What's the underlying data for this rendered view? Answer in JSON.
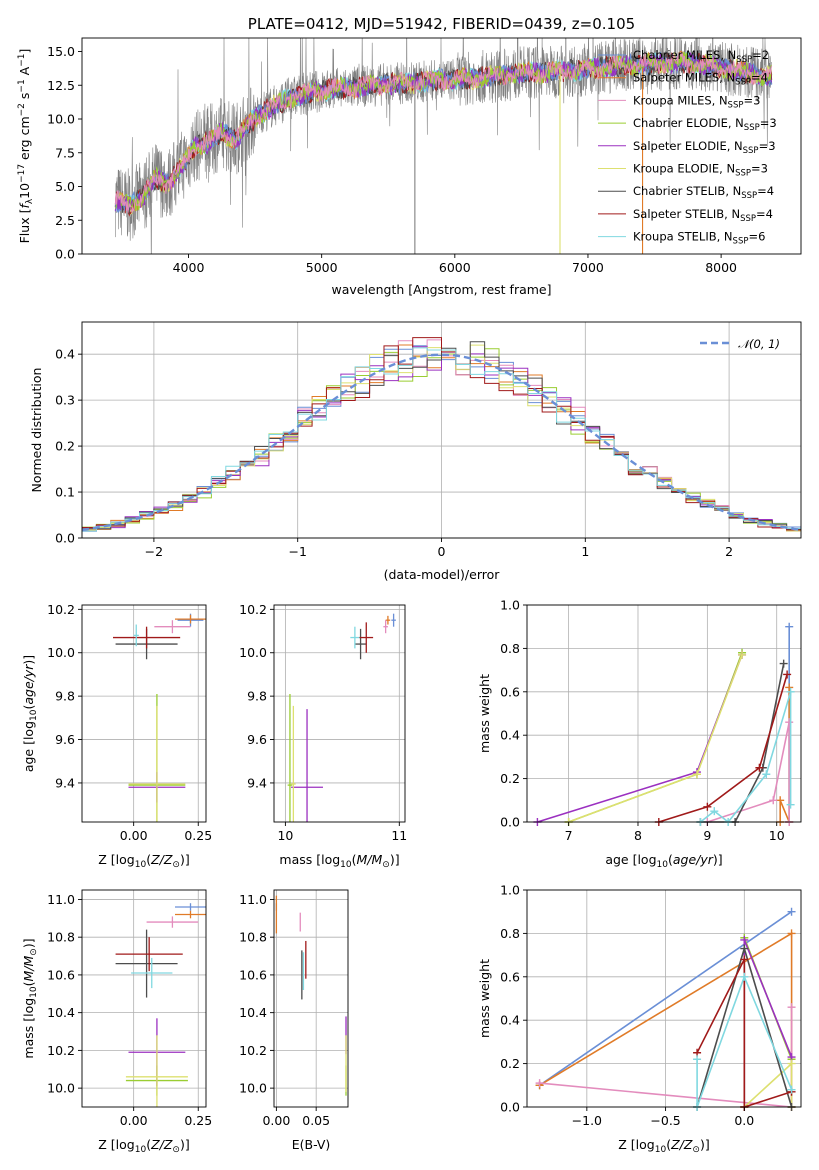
{
  "colors": {
    "chabrier_miles": "#6a8fd6",
    "salpeter_miles": "#e07b28",
    "kroupa_miles": "#e38cbd",
    "chabrier_elodie": "#9acd32",
    "salpeter_elodie": "#9b30c0",
    "kroupa_elodie": "#dde070",
    "chabrier_stelib": "#4d4d4d",
    "salpeter_stelib": "#a01a1a",
    "kroupa_stelib": "#80d8e0",
    "data": "#808080",
    "gauss": "#6a8fd6"
  },
  "chart_data": [
    {
      "id": "spectrum",
      "type": "line",
      "title": "PLATE=0412, MJD=51942, FIBERID=0439, z=0.105",
      "xlabel": "wavelength [Angstrom, rest frame]",
      "ylabel_parts": [
        "Flux [",
        "f",
        "λ",
        "10",
        "−17",
        " erg cm",
        "−2",
        " s",
        "−1",
        " A",
        "−1",
        "]"
      ],
      "xlim": [
        3200,
        8600
      ],
      "ylim": [
        0,
        16
      ],
      "xticks": [
        "4000",
        "5000",
        "6000",
        "7000",
        "8000"
      ],
      "xtick_values": [
        4000,
        5000,
        6000,
        7000,
        8000
      ],
      "yticks": [
        "0.0",
        "2.5",
        "5.0",
        "7.5",
        "10.0",
        "12.5",
        "15.0"
      ],
      "ytick_values": [
        0,
        2.5,
        5,
        7.5,
        10,
        12.5,
        15
      ],
      "model_x": [
        3450,
        3550,
        3650,
        3750,
        3850,
        3950,
        4050,
        4150,
        4250,
        4350,
        4450,
        4550,
        4650,
        4750,
        4850,
        4950,
        5100,
        5300,
        5500,
        5700,
        5900,
        6100,
        6300,
        6500,
        6700,
        6900,
        7100,
        7300,
        7500,
        7700,
        7900,
        8100,
        8300
      ],
      "model_y": [
        4.0,
        3.6,
        4.2,
        5.6,
        5.2,
        6.5,
        8.0,
        8.3,
        9.0,
        8.5,
        9.6,
        10.5,
        11.0,
        11.5,
        11.8,
        12.0,
        12.2,
        12.4,
        12.6,
        12.7,
        12.9,
        13.0,
        13.2,
        13.4,
        13.5,
        13.6,
        13.8,
        14.0,
        14.1,
        14.2,
        14.0,
        13.6,
        13.2
      ],
      "legend": [
        {
          "label": "Chabrier MILES, N",
          "sub": "SSP",
          "eq": "=2",
          "color_key": "chabrier_miles"
        },
        {
          "label": "Salpeter MILES, N",
          "sub": "SSP",
          "eq": "=4",
          "color_key": "salpeter_miles"
        },
        {
          "label": "Kroupa MILES, N",
          "sub": "SSP",
          "eq": "=3",
          "color_key": "kroupa_miles"
        },
        {
          "label": "Chabrier ELODIE, N",
          "sub": "SSP",
          "eq": "=3",
          "color_key": "chabrier_elodie"
        },
        {
          "label": "Salpeter ELODIE, N",
          "sub": "SSP",
          "eq": "=3",
          "color_key": "salpeter_elodie"
        },
        {
          "label": "Kroupa ELODIE, N",
          "sub": "SSP",
          "eq": "=3",
          "color_key": "kroupa_elodie"
        },
        {
          "label": "Chabrier STELIB, N",
          "sub": "SSP",
          "eq": "=4",
          "color_key": "chabrier_stelib"
        },
        {
          "label": "Salpeter STELIB, N",
          "sub": "SSP",
          "eq": "=4",
          "color_key": "salpeter_stelib"
        },
        {
          "label": "Kroupa STELIB, N",
          "sub": "SSP",
          "eq": "=6",
          "color_key": "kroupa_stelib"
        }
      ]
    },
    {
      "id": "residuals",
      "type": "histogram",
      "xlabel": "(data-model)/error",
      "ylabel": "Normed distribution",
      "xlim": [
        -2.5,
        2.5
      ],
      "ylim": [
        0,
        0.47
      ],
      "xticks": [
        "−2",
        "−1",
        "0",
        "1",
        "2"
      ],
      "xtick_values": [
        -2,
        -1,
        0,
        1,
        2
      ],
      "yticks": [
        "0.0",
        "0.1",
        "0.2",
        "0.3",
        "0.4"
      ],
      "ytick_values": [
        0,
        0.1,
        0.2,
        0.3,
        0.4
      ],
      "grid": true,
      "legend_label": "𝒩(0, 1)",
      "legend_position": "top-right",
      "bin_edges_start": -2.5,
      "bin_width": 0.1
    },
    {
      "id": "age_vs_Z",
      "type": "errorbar",
      "xlabel_parts": [
        "Z [log",
        "10",
        "(",
        "Z/Z",
        "⊙",
        ")]"
      ],
      "ylabel_parts": [
        "age  [log",
        "10",
        "(",
        "age/yr",
        ")]"
      ],
      "xlim": [
        -0.2,
        0.28
      ],
      "ylim": [
        9.22,
        10.22
      ],
      "xticks": [
        "0.00",
        "0.25"
      ],
      "xtick_values": [
        0,
        0.25
      ],
      "yticks": [
        "9.4",
        "9.6",
        "9.8",
        "10.0",
        "10.2"
      ],
      "ytick_values": [
        9.4,
        9.6,
        9.8,
        10.0,
        10.2
      ],
      "points": [
        {
          "c": "chabrier_miles",
          "x": 0.22,
          "y": 10.15,
          "xe": 0.05,
          "ye": 0.03
        },
        {
          "c": "salpeter_miles",
          "x": 0.22,
          "y": 10.155,
          "xe": 0.06,
          "ye": 0.02
        },
        {
          "c": "kroupa_miles",
          "x": 0.15,
          "y": 10.12,
          "xe": 0.07,
          "ye": 0.03
        },
        {
          "c": "chabrier_elodie",
          "x": 0.09,
          "y": 9.39,
          "xe": 0.11,
          "ye": 0.42
        },
        {
          "c": "salpeter_elodie",
          "x": 0.09,
          "y": 9.38,
          "xe": 0.11,
          "ye": 0.07
        },
        {
          "c": "kroupa_elodie",
          "x": 0.09,
          "y": 9.395,
          "xe": 0.11,
          "ye": 0.36
        },
        {
          "c": "chabrier_stelib",
          "x": 0.05,
          "y": 10.04,
          "xe": 0.12,
          "ye": 0.07
        },
        {
          "c": "salpeter_stelib",
          "x": 0.05,
          "y": 10.07,
          "xe": 0.13,
          "ye": 0.05
        },
        {
          "c": "kroupa_stelib",
          "x": 0.01,
          "y": 10.08,
          "xe": 0.01,
          "ye": 0.05
        }
      ]
    },
    {
      "id": "age_vs_mass",
      "type": "errorbar",
      "xlabel_parts": [
        "mass [log",
        "10",
        "(",
        "M/M",
        "⊙",
        ")]"
      ],
      "xlim": [
        9.9,
        11.05
      ],
      "ylim": [
        9.22,
        10.22
      ],
      "xticks": [
        "10",
        "11"
      ],
      "xtick_values": [
        10,
        11
      ],
      "yticks": [
        "9.4",
        "9.6",
        "9.8",
        "10.0",
        "10.2"
      ],
      "ytick_values": [
        9.4,
        9.6,
        9.8,
        10.0,
        10.2
      ],
      "points": [
        {
          "c": "chabrier_miles",
          "x": 10.95,
          "y": 10.15,
          "xe": 0.02,
          "ye": 0.03
        },
        {
          "c": "salpeter_miles",
          "x": 10.9,
          "y": 10.15,
          "xe": 0.02,
          "ye": 0.02
        },
        {
          "c": "kroupa_miles",
          "x": 10.88,
          "y": 10.12,
          "xe": 0.02,
          "ye": 0.03
        },
        {
          "c": "chabrier_elodie",
          "x": 10.04,
          "y": 9.39,
          "xe": 0.02,
          "ye": 0.42
        },
        {
          "c": "salpeter_elodie",
          "x": 10.19,
          "y": 9.38,
          "xe": 0.14,
          "ye": 0.36
        },
        {
          "c": "kroupa_elodie",
          "x": 10.07,
          "y": 9.395,
          "xe": 0.02,
          "ye": 0.36
        },
        {
          "c": "chabrier_stelib",
          "x": 10.66,
          "y": 10.04,
          "xe": 0.05,
          "ye": 0.07
        },
        {
          "c": "salpeter_stelib",
          "x": 10.71,
          "y": 10.07,
          "xe": 0.06,
          "ye": 0.07
        },
        {
          "c": "kroupa_stelib",
          "x": 10.61,
          "y": 10.07,
          "xe": 0.04,
          "ye": 0.05
        }
      ]
    },
    {
      "id": "mass_weight_vs_age",
      "type": "line",
      "xlabel_parts": [
        "age  [log",
        "10",
        "(",
        "age/yr",
        ")]"
      ],
      "ylabel": "mass weight",
      "xlim": [
        6.4,
        10.35
      ],
      "ylim": [
        0,
        1
      ],
      "xticks": [
        "7",
        "8",
        "9",
        "10"
      ],
      "xtick_values": [
        7,
        8,
        9,
        10
      ],
      "yticks": [
        "0.0",
        "0.2",
        "0.4",
        "0.6",
        "0.8",
        "1.0"
      ],
      "ytick_values": [
        0,
        0.2,
        0.4,
        0.6,
        0.8,
        1.0
      ],
      "series": [
        {
          "c": "chabrier_miles",
          "x": [
            10.18,
            10.18
          ],
          "y": [
            0.0,
            0.9
          ]
        },
        {
          "c": "salpeter_miles",
          "x": [
            10.05,
            10.05,
            10.18,
            10.18
          ],
          "y": [
            0.0,
            0.1,
            0.0,
            0.62
          ]
        },
        {
          "c": "kroupa_miles",
          "x": [
            9.0,
            9.95,
            10.18,
            10.18
          ],
          "y": [
            0.0,
            0.1,
            0.46,
            0.0
          ]
        },
        {
          "c": "chabrier_elodie",
          "x": [
            7.0,
            8.85,
            9.5
          ],
          "y": [
            0.0,
            0.22,
            0.78
          ]
        },
        {
          "c": "salpeter_elodie",
          "x": [
            6.55,
            8.85,
            9.5
          ],
          "y": [
            0.0,
            0.23,
            0.77
          ]
        },
        {
          "c": "kroupa_elodie",
          "x": [
            7.0,
            8.85,
            9.5
          ],
          "y": [
            0.0,
            0.22,
            0.77
          ]
        },
        {
          "c": "chabrier_stelib",
          "x": [
            8.9,
            9.4,
            9.8,
            10.1
          ],
          "y": [
            0.0,
            0.0,
            0.25,
            0.73
          ]
        },
        {
          "c": "salpeter_stelib",
          "x": [
            8.3,
            9.0,
            9.75,
            10.15
          ],
          "y": [
            0.0,
            0.07,
            0.25,
            0.68
          ]
        },
        {
          "c": "kroupa_stelib",
          "x": [
            8.9,
            9.1,
            9.3,
            9.85,
            10.2,
            10.2
          ],
          "y": [
            0.0,
            0.05,
            0.0,
            0.22,
            0.6,
            0.08
          ]
        }
      ]
    },
    {
      "id": "mass_vs_Z",
      "type": "errorbar",
      "xlabel_parts": [
        "Z [log",
        "10",
        "(",
        "Z/Z",
        "⊙",
        ")]"
      ],
      "ylabel_parts": [
        "mass [log",
        "10",
        "(",
        "M/M",
        "⊙",
        ")]"
      ],
      "xlim": [
        -0.2,
        0.28
      ],
      "ylim": [
        9.9,
        11.05
      ],
      "xticks": [
        "0.00",
        "0.25"
      ],
      "xtick_values": [
        0,
        0.25
      ],
      "yticks": [
        "10.0",
        "10.2",
        "10.4",
        "10.6",
        "10.8",
        "11.0"
      ],
      "ytick_values": [
        10.0,
        10.2,
        10.4,
        10.6,
        10.8,
        11.0
      ],
      "points": [
        {
          "c": "chabrier_miles",
          "x": 0.22,
          "y": 10.96,
          "xe": 0.06,
          "ye": 0.02
        },
        {
          "c": "salpeter_miles",
          "x": 0.22,
          "y": 10.92,
          "xe": 0.06,
          "ye": 0.02
        },
        {
          "c": "kroupa_miles",
          "x": 0.15,
          "y": 10.88,
          "xe": 0.1,
          "ye": 0.03
        },
        {
          "c": "chabrier_elodie",
          "x": 0.09,
          "y": 10.04,
          "xe": 0.12,
          "ye": 0.08
        },
        {
          "c": "salpeter_elodie",
          "x": 0.09,
          "y": 10.19,
          "xe": 0.11,
          "ye": 0.18
        },
        {
          "c": "kroupa_elodie",
          "x": 0.09,
          "y": 10.06,
          "xe": 0.12,
          "ye": 0.22
        },
        {
          "c": "chabrier_stelib",
          "x": 0.05,
          "y": 10.66,
          "xe": 0.12,
          "ye": 0.18
        },
        {
          "c": "salpeter_stelib",
          "x": 0.06,
          "y": 10.71,
          "xe": 0.13,
          "ye": 0.09
        },
        {
          "c": "kroupa_stelib",
          "x": 0.07,
          "y": 10.61,
          "xe": 0.08,
          "ye": 0.08
        }
      ]
    },
    {
      "id": "mass_vs_ebv",
      "type": "errorbar",
      "xlabel": "E(B-V)",
      "xlim": [
        -0.003,
        0.09
      ],
      "ylim": [
        9.9,
        11.05
      ],
      "xticks": [
        "0.00",
        "0.05"
      ],
      "xtick_values": [
        0,
        0.05
      ],
      "yticks": [
        "10.0",
        "10.2",
        "10.4",
        "10.6",
        "10.8",
        "11.0"
      ],
      "ytick_values": [
        10.0,
        10.2,
        10.4,
        10.6,
        10.8,
        11.0
      ],
      "points": [
        {
          "c": "chabrier_miles",
          "x": 0.0,
          "y": 10.96,
          "xe": 0.0,
          "ye": 0.02
        },
        {
          "c": "salpeter_miles",
          "x": 0.0,
          "y": 10.92,
          "xe": 0.0,
          "ye": 0.1
        },
        {
          "c": "kroupa_miles",
          "x": 0.03,
          "y": 10.88,
          "xe": 0.0,
          "ye": 0.05
        },
        {
          "c": "chabrier_elodie",
          "x": 0.0875,
          "y": 10.04,
          "xe": 0.0,
          "ye": 0.08
        },
        {
          "c": "salpeter_elodie",
          "x": 0.0875,
          "y": 10.28,
          "xe": 0.0,
          "ye": 0.1
        },
        {
          "c": "kroupa_elodie",
          "x": 0.0875,
          "y": 10.13,
          "xe": 0.0,
          "ye": 0.15
        },
        {
          "c": "chabrier_stelib",
          "x": 0.032,
          "y": 10.6,
          "xe": 0.0,
          "ye": 0.13
        },
        {
          "c": "salpeter_stelib",
          "x": 0.037,
          "y": 10.68,
          "xe": 0.0,
          "ye": 0.1
        },
        {
          "c": "kroupa_stelib",
          "x": 0.034,
          "y": 10.62,
          "xe": 0.0,
          "ye": 0.1
        }
      ]
    },
    {
      "id": "mass_weight_vs_Z",
      "type": "line",
      "xlabel_parts": [
        "Z [log",
        "10",
        "(",
        "Z/Z",
        "⊙",
        ")]"
      ],
      "ylabel": "mass weight",
      "xlim": [
        -1.38,
        0.36
      ],
      "ylim": [
        0,
        1
      ],
      "xticks": [
        "−1.0",
        "−0.5",
        "0.0"
      ],
      "xtick_values": [
        -1,
        -0.5,
        0
      ],
      "yticks": [
        "0.0",
        "0.2",
        "0.4",
        "0.6",
        "0.8",
        "1.0"
      ],
      "ytick_values": [
        0,
        0.2,
        0.4,
        0.6,
        0.8,
        1.0
      ],
      "series": [
        {
          "c": "chabrier_miles",
          "x": [
            -1.3,
            0.3
          ],
          "y": [
            0.1,
            0.9
          ]
        },
        {
          "c": "salpeter_miles",
          "x": [
            -1.3,
            0.3,
            0.3
          ],
          "y": [
            0.1,
            0.8,
            0.0
          ]
        },
        {
          "c": "kroupa_miles",
          "x": [
            -1.3,
            0.3,
            0.3
          ],
          "y": [
            0.11,
            0.0,
            0.46
          ]
        },
        {
          "c": "chabrier_elodie",
          "x": [
            0.0,
            0.0,
            0.3
          ],
          "y": [
            0.0,
            0.78,
            0.22
          ]
        },
        {
          "c": "salpeter_elodie",
          "x": [
            0.0,
            0.0,
            0.3
          ],
          "y": [
            0.0,
            0.77,
            0.23
          ]
        },
        {
          "c": "kroupa_elodie",
          "x": [
            0.0,
            0.3,
            0.3
          ],
          "y": [
            0.0,
            0.2,
            0.0
          ]
        },
        {
          "c": "chabrier_stelib",
          "x": [
            -0.3,
            0.0,
            0.3
          ],
          "y": [
            0.0,
            0.73,
            0.0
          ]
        },
        {
          "c": "salpeter_stelib",
          "x": [
            -0.3,
            0.0,
            0.0,
            0.3
          ],
          "y": [
            0.25,
            0.68,
            0.0,
            0.07
          ]
        },
        {
          "c": "kroupa_stelib",
          "x": [
            -0.3,
            -0.3,
            0.0,
            0.3
          ],
          "y": [
            0.22,
            0.0,
            0.6,
            0.08
          ]
        }
      ]
    }
  ]
}
